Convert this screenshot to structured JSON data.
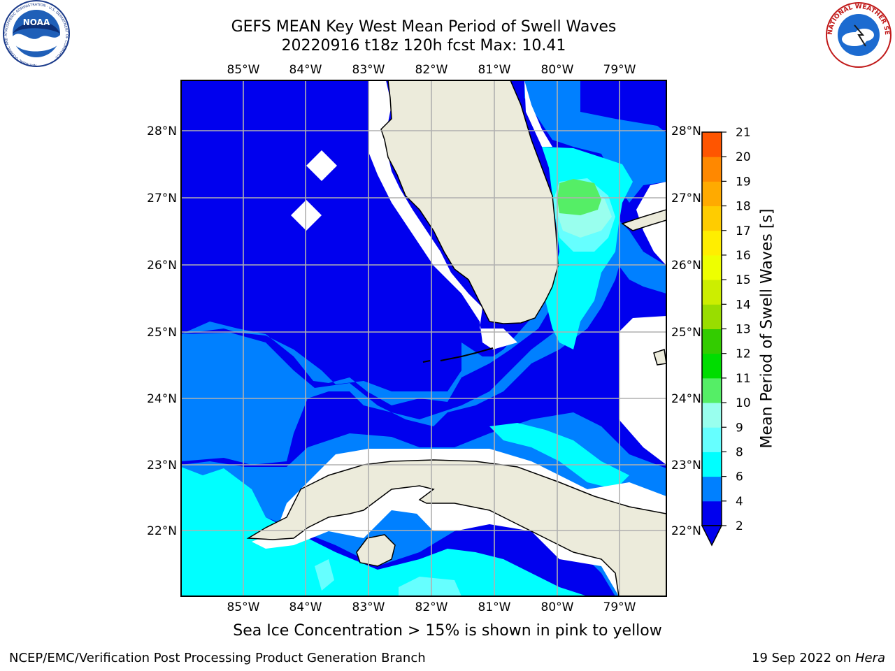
{
  "header": {
    "title_line1": "GEFS MEAN Key West Mean Period of Swell Waves",
    "title_line2": "20220916 t18z 120h fcst   Max: 10.41"
  },
  "map": {
    "lon_labels": [
      "85°W",
      "84°W",
      "83°W",
      "82°W",
      "81°W",
      "80°W",
      "79°W"
    ],
    "lat_labels": [
      "28°N",
      "27°N",
      "26°N",
      "25°N",
      "24°N",
      "23°N",
      "22°N"
    ],
    "colors": {
      "land": "#ecebdb",
      "no_data": "#ffffff",
      "band_2_4": "#0000ee",
      "band_4_6": "#0080ff",
      "band_6_8": "#00ffff",
      "band_8_9": "#66ffff",
      "band_9_10": "#99ffee",
      "band_10_11": "#55ee66",
      "grid": "#b0b0b0"
    }
  },
  "colorbar": {
    "label": "Mean Period of Swell Waves [s]",
    "ticks": [
      "2",
      "4",
      "6",
      "8",
      "9",
      "10",
      "11",
      "12",
      "13",
      "14",
      "15",
      "16",
      "17",
      "18",
      "19",
      "20",
      "21"
    ],
    "colors": [
      "#0000ee",
      "#0080ff",
      "#00ffff",
      "#66ffff",
      "#99ffee",
      "#55ee66",
      "#00dd00",
      "#33cc00",
      "#99dd00",
      "#ccee00",
      "#eeff00",
      "#ffee00",
      "#ffcc00",
      "#ffaa00",
      "#ff8800",
      "#ff5500",
      "#ff2200",
      "#ff0000"
    ]
  },
  "notes": {
    "ice": "Sea Ice Concentration > 15% is shown in pink to yellow"
  },
  "footer": {
    "left": "NCEP/EMC/Verification Post Processing Product Generation Branch",
    "right_date": "19 Sep 2022 on ",
    "right_system": "Hera"
  },
  "logos": {
    "left_text": "NOAA",
    "left_ring": "NATIONAL OCEANIC AND ATMOSPHERIC ADMINISTRATION · U.S. DEPARTMENT OF COMMERCE",
    "right_ring": "NATIONAL WEATHER SERVICE"
  }
}
